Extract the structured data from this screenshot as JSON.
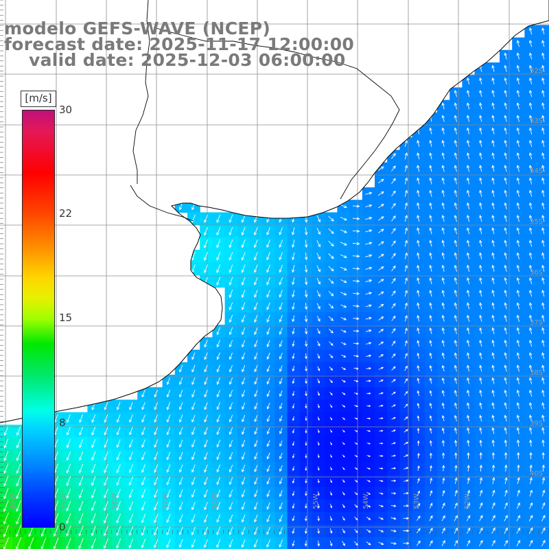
{
  "title": {
    "line1": "modelo GEFS-WAVE (NCEP)",
    "line2": "forecast date: 2025-11-17 12:00:00",
    "line3": "valid date: 2025-12-03 06:00:00"
  },
  "colorbar": {
    "unit": "[m/s]",
    "ticks": [
      "30",
      "22",
      "15",
      "8",
      "0"
    ],
    "min": 0,
    "max": 30
  },
  "axes": {
    "lon_labels": [
      "60W",
      "59W",
      "58W",
      "57W",
      "56W",
      "55W",
      "54W",
      "53W",
      "52W"
    ],
    "lat_labels": [
      "32S",
      "33S",
      "34S",
      "35S",
      "36S",
      "37S",
      "38S",
      "39S",
      "40S"
    ]
  },
  "colors": {
    "land": "#ffffff",
    "grid": "#8c8c8c",
    "coast": "#000000",
    "arrow": "#ffffff",
    "title": "#7a7a7a"
  },
  "field": {
    "variable": "wind speed and direction",
    "units": "m/s",
    "regions": [
      {
        "area": "Rio de la Plata / SW coast",
        "speed_ms": 11,
        "direction": "toward SSW"
      },
      {
        "area": "central shelf",
        "speed_ms": 8,
        "direction": "toward SSW"
      },
      {
        "area": "SE offshore low-wind core",
        "speed_ms": 2,
        "direction": "variable"
      },
      {
        "area": "NE offshore",
        "speed_ms": 5,
        "direction": "toward NNW"
      }
    ]
  }
}
